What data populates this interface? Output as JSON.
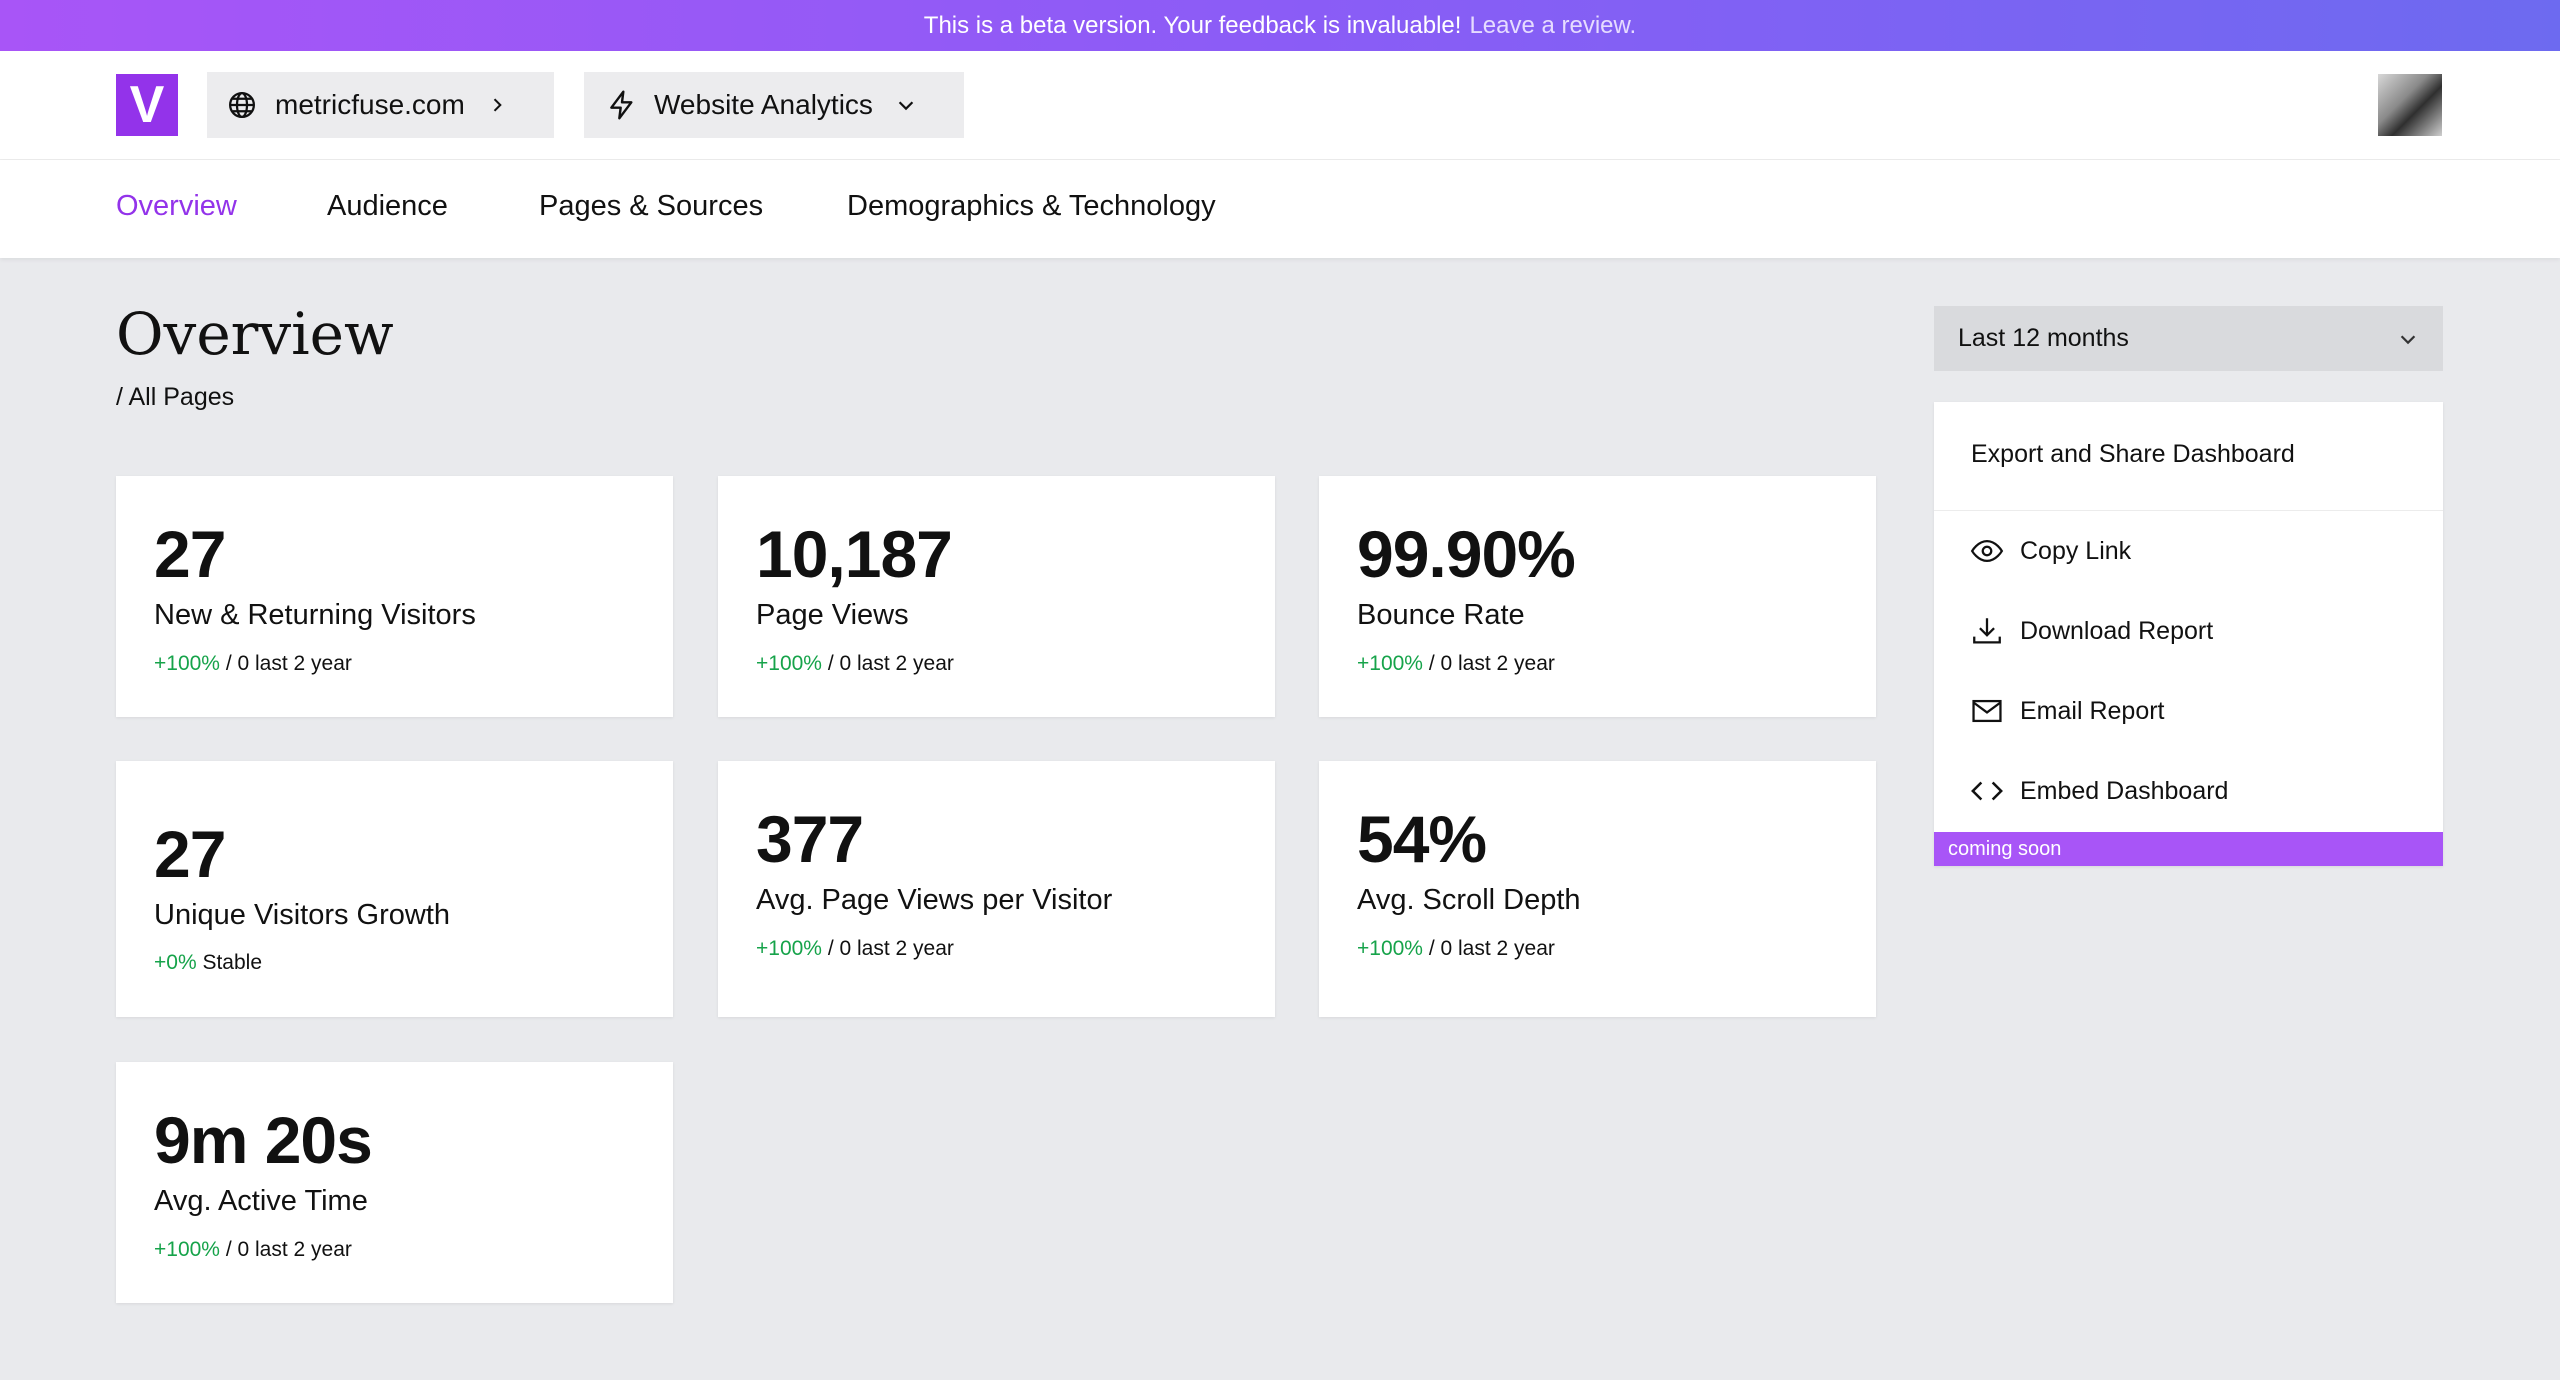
{
  "banner": {
    "message": "This is a beta version. Your feedback is invaluable!",
    "link": "Leave a review."
  },
  "header": {
    "logo_letter": "V",
    "site": "metricfuse.com",
    "product": "Website Analytics"
  },
  "nav": {
    "tabs": [
      {
        "label": "Overview",
        "active": true
      },
      {
        "label": "Audience"
      },
      {
        "label": "Pages & Sources"
      },
      {
        "label": "Demographics & Technology"
      }
    ]
  },
  "page": {
    "title": "Overview",
    "breadcrumb": "/ All Pages"
  },
  "metrics": [
    {
      "value": "27",
      "label": "New & Returning Visitors",
      "change": "+100%",
      "suffix": " / 0 last 2 year"
    },
    {
      "value": "10,187",
      "label": "Page Views",
      "change": "+100%",
      "suffix": " / 0 last 2 year"
    },
    {
      "value": "99.90%",
      "label": "Bounce Rate",
      "change": "+100%",
      "suffix": " / 0 last 2 year"
    },
    {
      "value": "27",
      "label": "Unique Visitors Growth",
      "change": "+0%",
      "suffix": " Stable"
    },
    {
      "value": "377",
      "label": "Avg. Page Views per Visitor",
      "change": "+100%",
      "suffix": " / 0 last 2 year"
    },
    {
      "value": "54%",
      "label": "Avg. Scroll Depth",
      "change": "+100%",
      "suffix": " / 0 last 2 year"
    },
    {
      "value": "9m 20s",
      "label": "Avg. Active Time",
      "change": "+100%",
      "suffix": " / 0 last 2 year"
    }
  ],
  "range": {
    "selected": "Last 12 months"
  },
  "share": {
    "title": "Export and Share Dashboard",
    "items": [
      {
        "label": "Copy Link",
        "icon": "eye-icon"
      },
      {
        "label": "Download Report",
        "icon": "download-icon"
      },
      {
        "label": "Email Report",
        "icon": "mail-icon"
      },
      {
        "label": "Embed Dashboard",
        "icon": "code-icon"
      }
    ],
    "coming_soon": "coming soon"
  },
  "colors": {
    "accent": "#9333ea",
    "positive": "#16a34a",
    "background": "#e9eaed"
  }
}
